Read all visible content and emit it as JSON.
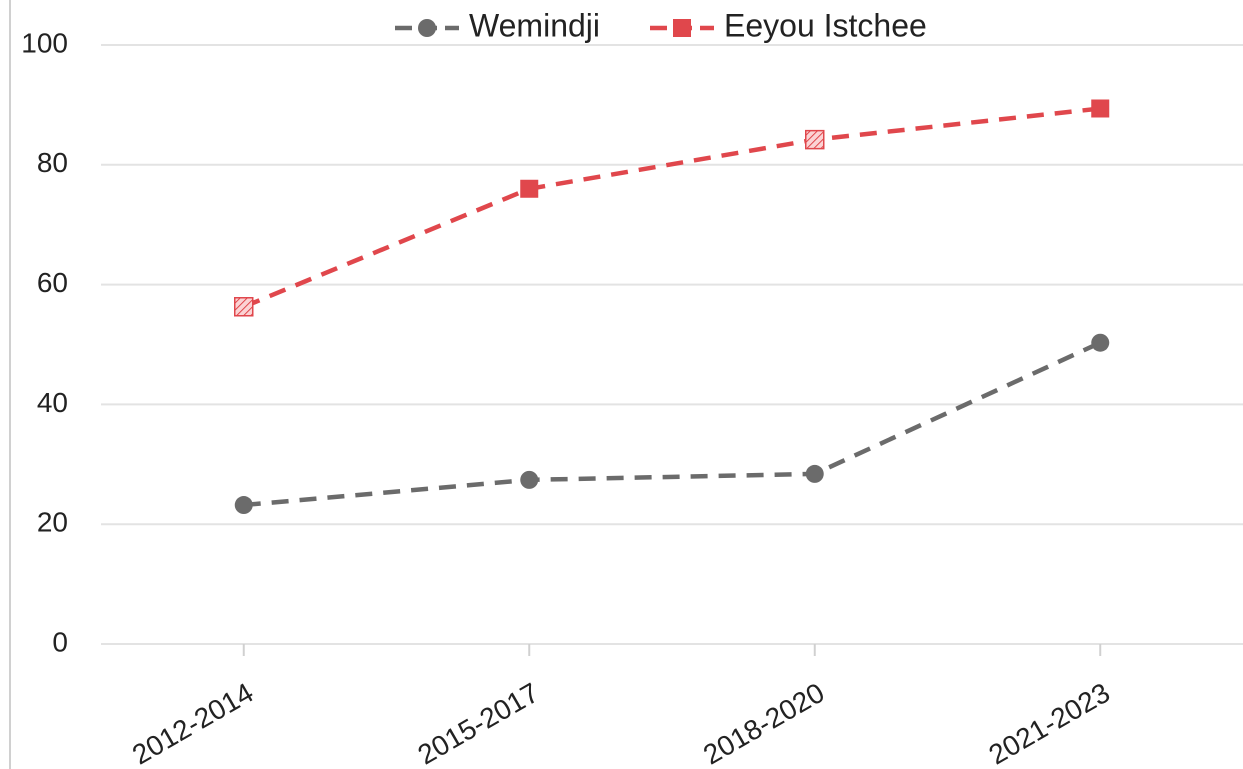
{
  "chart_data": {
    "type": "line",
    "categories": [
      "2012-2014",
      "2015-2017",
      "2018-2020",
      "2021-2023"
    ],
    "series": [
      {
        "name": "Wemindji",
        "color": "#6b6b6b",
        "marker": "circle",
        "values": [
          23.2,
          27.4,
          28.4,
          50.3
        ]
      },
      {
        "name": "Eeyou Istchee",
        "color": "#e0474c",
        "marker": "square",
        "values": [
          56.3,
          76,
          84.2,
          89.4
        ],
        "hatched": [
          true,
          false,
          true,
          false
        ]
      }
    ],
    "ylim": [
      0,
      100
    ],
    "yticks": [
      0,
      20,
      40,
      60,
      80,
      100
    ],
    "grid": true,
    "legend": "top"
  }
}
